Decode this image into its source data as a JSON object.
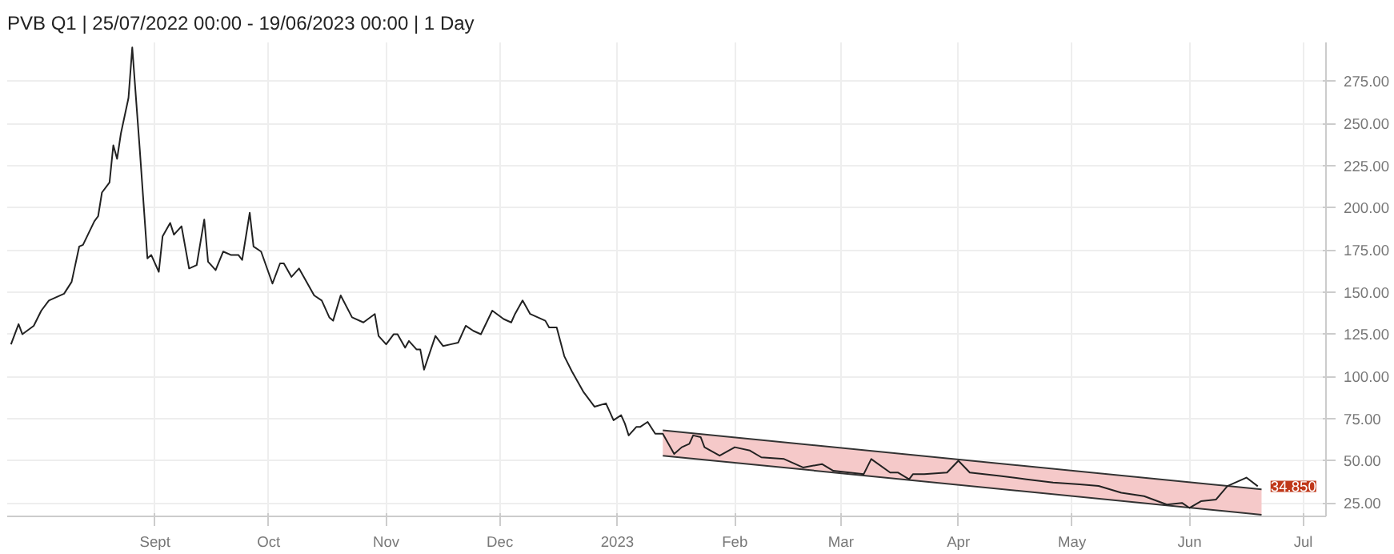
{
  "chart_data": {
    "type": "line",
    "title": "PVB Q1 | 25/07/2022 00:00 - 19/06/2023 00:00 | 1 Day",
    "xlim": [
      "2022-07-24",
      "2023-07-07"
    ],
    "ylim": [
      17,
      298
    ],
    "xticks": [
      {
        "value": "2022-09-01",
        "label": "Sept"
      },
      {
        "value": "2022-10-01",
        "label": "Oct"
      },
      {
        "value": "2022-11-01",
        "label": "Nov"
      },
      {
        "value": "2022-12-01",
        "label": "Dec"
      },
      {
        "value": "2023-01-01",
        "label": "2023"
      },
      {
        "value": "2023-02-01",
        "label": "Feb"
      },
      {
        "value": "2023-03-01",
        "label": "Mar"
      },
      {
        "value": "2023-04-01",
        "label": "Apr"
      },
      {
        "value": "2023-05-01",
        "label": "May"
      },
      {
        "value": "2023-06-01",
        "label": "Jun"
      },
      {
        "value": "2023-07-01",
        "label": "Jul"
      }
    ],
    "yticks": [
      {
        "value": 25,
        "label": "25.00"
      },
      {
        "value": 50,
        "label": "50.00"
      },
      {
        "value": 75,
        "label": "75.00"
      },
      {
        "value": 100,
        "label": "100.00"
      },
      {
        "value": 125,
        "label": "125.00"
      },
      {
        "value": 150,
        "label": "150.00"
      },
      {
        "value": 175,
        "label": "175.00"
      },
      {
        "value": 200,
        "label": "200.00"
      },
      {
        "value": 225,
        "label": "225.00"
      },
      {
        "value": 250,
        "label": "250.00"
      },
      {
        "value": 275,
        "label": "275.00"
      }
    ],
    "grid": true,
    "series": [
      {
        "color": "#333333",
        "x": [
          "2023-01-13",
          "2023-06-20"
        ],
        "values": [
          68,
          33
        ],
        "lower": [
          53,
          18
        ],
        "upper": [
          68,
          33
        ]
      },
      {
        "color": "#333333",
        "x": [
          "2023-01-13",
          "2023-06-20"
        ],
        "values": [
          53,
          18
        ]
      },
      {
        "color": "#222222",
        "x": [
          "2022-07-25",
          "2022-07-27",
          "2022-07-28",
          "2022-07-31",
          "2022-08-02",
          "2022-08-04",
          "2022-08-08",
          "2022-08-10",
          "2022-08-12",
          "2022-08-13",
          "2022-08-16",
          "2022-08-17",
          "2022-08-18",
          "2022-08-20",
          "2022-08-21",
          "2022-08-22",
          "2022-08-23",
          "2022-08-25",
          "2022-08-26",
          "2022-08-28",
          "2022-08-30",
          "2022-08-31",
          "2022-09-02",
          "2022-09-03",
          "2022-09-05",
          "2022-09-06",
          "2022-09-08",
          "2022-09-10",
          "2022-09-12",
          "2022-09-14",
          "2022-09-15",
          "2022-09-17",
          "2022-09-19",
          "2022-09-21",
          "2022-09-23",
          "2022-09-24",
          "2022-09-26",
          "2022-09-27",
          "2022-09-29",
          "2022-10-02",
          "2022-10-04",
          "2022-10-05",
          "2022-10-07",
          "2022-10-09",
          "2022-10-13",
          "2022-10-15",
          "2022-10-17",
          "2022-10-18",
          "2022-10-20",
          "2022-10-23",
          "2022-10-26",
          "2022-10-29",
          "2022-10-30",
          "2022-11-01",
          "2022-11-03",
          "2022-11-04",
          "2022-11-06",
          "2022-11-07",
          "2022-11-09",
          "2022-11-10",
          "2022-11-11",
          "2022-11-14",
          "2022-11-16",
          "2022-11-18",
          "2022-11-20",
          "2022-11-22",
          "2022-11-24",
          "2022-11-26",
          "2022-11-29",
          "2022-12-02",
          "2022-12-04",
          "2022-12-05",
          "2022-12-07",
          "2022-12-09",
          "2022-12-13",
          "2022-12-14",
          "2022-12-16",
          "2022-12-18",
          "2022-12-20",
          "2022-12-23",
          "2022-12-26",
          "2022-12-29",
          "2022-12-31",
          "2023-01-02",
          "2023-01-03",
          "2023-01-04",
          "2023-01-06",
          "2023-01-07",
          "2023-01-09",
          "2023-01-11",
          "2023-01-13",
          "2023-01-14",
          "2023-01-16",
          "2023-01-18",
          "2023-01-20",
          "2023-01-21",
          "2023-01-23",
          "2023-01-24",
          "2023-01-28",
          "2023-02-01",
          "2023-02-05",
          "2023-02-08",
          "2023-02-14",
          "2023-02-19",
          "2023-02-24",
          "2023-02-27",
          "2023-03-07",
          "2023-03-09",
          "2023-03-14",
          "2023-03-16",
          "2023-03-19",
          "2023-03-20",
          "2023-03-23",
          "2023-03-29",
          "2023-04-01",
          "2023-04-04",
          "2023-04-12",
          "2023-04-19",
          "2023-04-26",
          "2023-05-03",
          "2023-05-08",
          "2023-05-14",
          "2023-05-20",
          "2023-05-26",
          "2023-05-30",
          "2023-06-01",
          "2023-06-04",
          "2023-06-08",
          "2023-06-11",
          "2023-06-16",
          "2023-06-19"
        ],
        "values": [
          119,
          131,
          125,
          130,
          139,
          145,
          149,
          156,
          177,
          178,
          192,
          195,
          209,
          215,
          237,
          229,
          244,
          265,
          295,
          234,
          170,
          172,
          162,
          183,
          191,
          184,
          189,
          164,
          166,
          193,
          168,
          163,
          174,
          172,
          172,
          169,
          197,
          177,
          174,
          155,
          167,
          167,
          159,
          164,
          148,
          145,
          135,
          133,
          148,
          135,
          132,
          137,
          124,
          119,
          125,
          125,
          117,
          121,
          116,
          116,
          104,
          124,
          118,
          119,
          120,
          130,
          127,
          125,
          139,
          134,
          132,
          137,
          145,
          137,
          133,
          129,
          129,
          112,
          103,
          91,
          82,
          84,
          74,
          77,
          72,
          65,
          70,
          70,
          73,
          66,
          66,
          62,
          54,
          58,
          60,
          65,
          64,
          58,
          53,
          58,
          56,
          52,
          51,
          46,
          48,
          44,
          42,
          51,
          43,
          43,
          39,
          42,
          42,
          43,
          50,
          43,
          41,
          39,
          37,
          36,
          35,
          31,
          29,
          24,
          25,
          22,
          26,
          27,
          35,
          40,
          34.85
        ]
      }
    ],
    "annotations": [
      {
        "text": "34.850",
        "x": "2023-06-19",
        "y": 34.85
      }
    ]
  }
}
